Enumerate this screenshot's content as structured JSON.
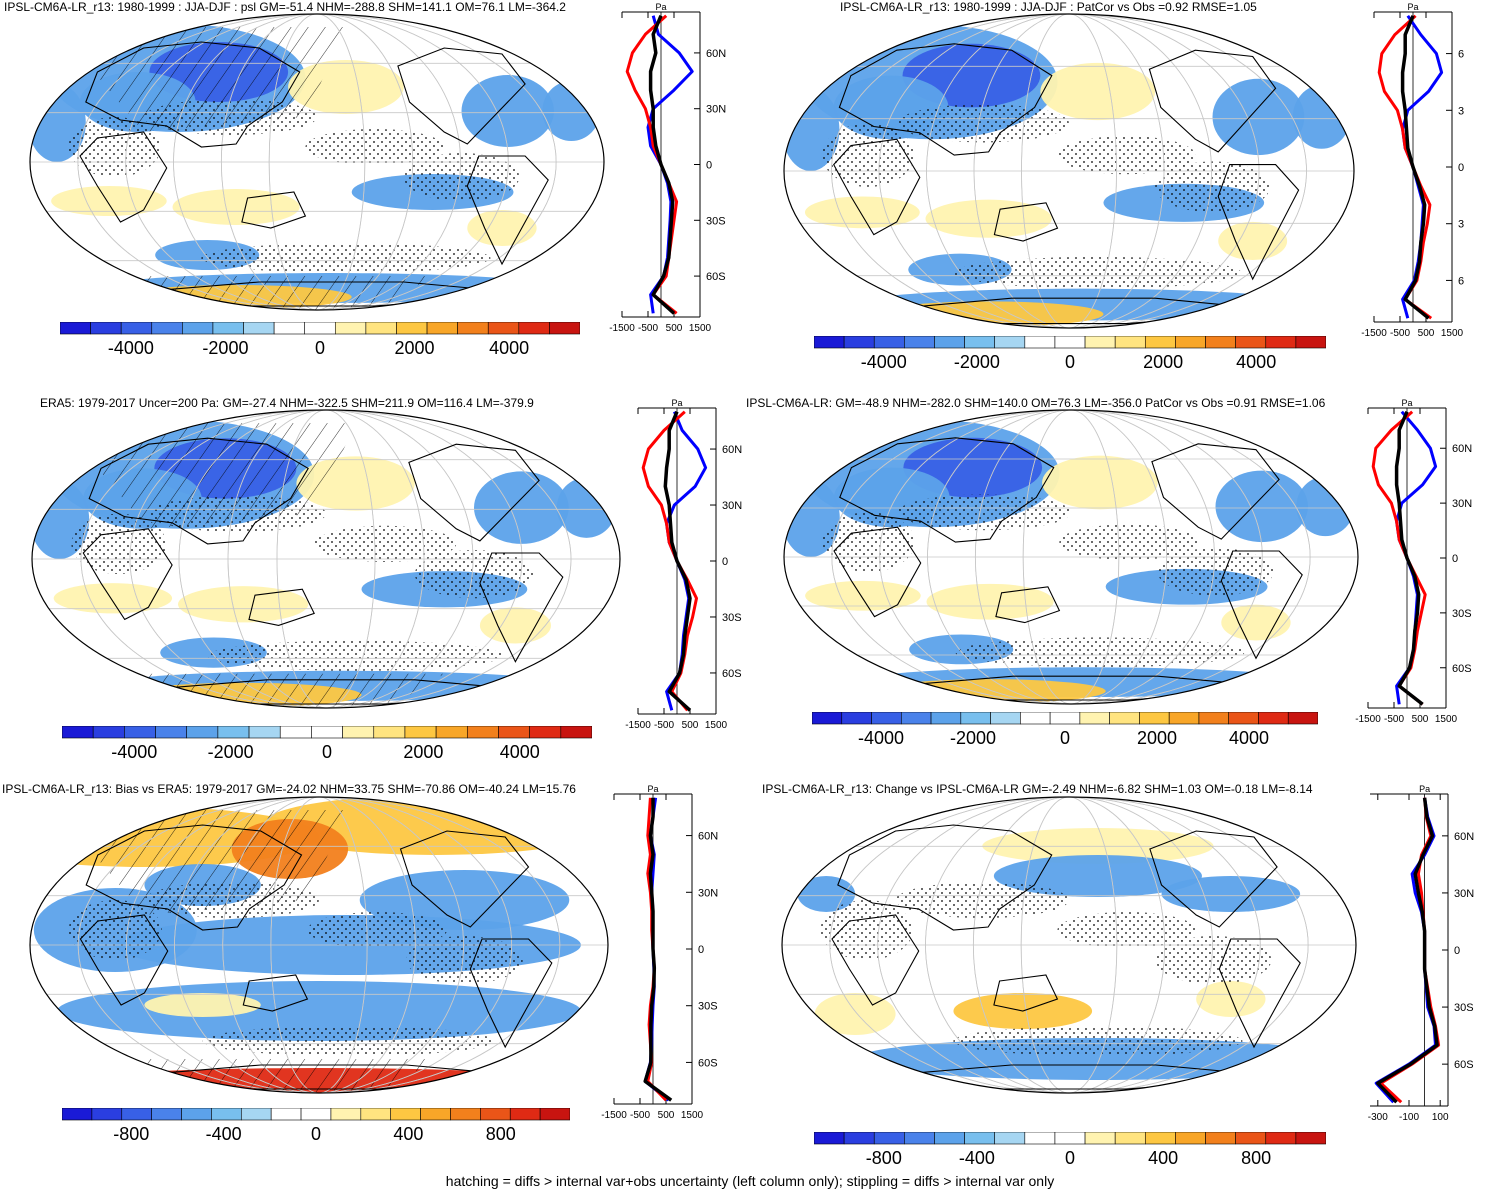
{
  "footnote": "hatching = diffs > internal var+obs uncertainty (left column only); stippling = diffs > internal var only",
  "colors": {
    "scale": [
      "#1a1ad6",
      "#2a3ee0",
      "#3860e6",
      "#4a82ea",
      "#5ca2ea",
      "#78bfee",
      "#a6d6f2",
      "#ffffff",
      "#ffffff",
      "#fff3b0",
      "#ffe480",
      "#fdc742",
      "#f8a628",
      "#f2801c",
      "#ea5518",
      "#df2a14",
      "#c81410"
    ],
    "model_line": "#0000ff",
    "obs_line": "#ff0000",
    "ref_line": "#000000",
    "grid": "#c8c8c8"
  },
  "icons": {
    "land": "continent-outline",
    "hatch": "hatching-lines",
    "stipple": "stippling-dots"
  },
  "chart_data": [
    {
      "type": "heatmap",
      "title": "IPSL-CM6A-LR_r13: 1980-1999 : JJA-DJF : psl GM=-51.4 NHM=-288.8 SHM=141.1 OM=76.1 LM=-364.2",
      "colorbar_ticks": [
        "-4000",
        "-2000",
        "0",
        "2000",
        "4000"
      ],
      "colorbar_range": [
        -5500,
        5500
      ],
      "lat_ticks": [
        "60N",
        "30N",
        "0",
        "30S",
        "60S"
      ],
      "profile_unit": "Pa",
      "profile_ticks": [
        "-1500",
        "-500",
        "500",
        "1500"
      ],
      "profile_range": [
        -1500,
        1500
      ],
      "profile_lat_positions": [
        60,
        30,
        0,
        -30,
        -60
      ],
      "lat": [
        80,
        70,
        60,
        50,
        40,
        30,
        20,
        10,
        0,
        -10,
        -20,
        -30,
        -40,
        -50,
        -60,
        -70,
        -80
      ],
      "zonal_mean": [
        {
          "values": [
            -300,
            -100,
            700,
            1200,
            500,
            -300,
            -500,
            -400,
            0,
            250,
            380,
            350,
            300,
            250,
            100,
            -400,
            -300
          ]
        },
        {
          "values": [
            200,
            -600,
            -1100,
            -1300,
            -1000,
            -600,
            -400,
            -300,
            0,
            300,
            600,
            500,
            400,
            300,
            200,
            -300,
            600
          ]
        },
        {
          "values": [
            0,
            -300,
            -200,
            -400,
            -400,
            -300,
            -300,
            -200,
            0,
            300,
            450,
            400,
            350,
            300,
            100,
            -300,
            500
          ]
        }
      ]
    },
    {
      "type": "heatmap",
      "title": "IPSL-CM6A-LR_r13: 1980-1999 : JJA-DJF : PatCor vs Obs =0.92 RMSE=1.05",
      "colorbar_ticks": [
        "-4000",
        "-2000",
        "0",
        "2000",
        "4000"
      ],
      "colorbar_range": [
        -5500,
        5500
      ],
      "lat_ticks": [
        "6",
        "3",
        "0",
        "3",
        "6"
      ],
      "profile_unit": "Pa",
      "profile_ticks": [
        "-1500",
        "-500",
        "500",
        "1500"
      ],
      "profile_range": [
        -1500,
        1500
      ],
      "profile_lat_positions": [
        60,
        30,
        0,
        -30,
        -60
      ],
      "lat": [
        80,
        70,
        60,
        50,
        40,
        30,
        20,
        10,
        0,
        -10,
        -20,
        -30,
        -40,
        -50,
        -60,
        -70,
        -80
      ],
      "zonal_mean": [
        {
          "values": [
            -200,
            300,
            900,
            1100,
            600,
            -200,
            -400,
            -300,
            0,
            200,
            400,
            350,
            300,
            200,
            50,
            -400,
            -200
          ]
        },
        {
          "values": [
            100,
            -700,
            -1200,
            -1300,
            -1100,
            -600,
            -400,
            -300,
            0,
            300,
            650,
            550,
            400,
            300,
            150,
            -300,
            700
          ]
        },
        {
          "values": [
            0,
            -300,
            -300,
            -400,
            -400,
            -300,
            -250,
            -200,
            0,
            250,
            450,
            400,
            300,
            250,
            100,
            -300,
            600
          ]
        }
      ]
    },
    {
      "type": "heatmap",
      "title": "ERA5: 1979-2017 Uncer=200 Pa: GM=-27.4 NHM=-322.5 SHM=211.9 OM=116.4 LM=-379.9",
      "colorbar_ticks": [
        "-4000",
        "-2000",
        "0",
        "2000",
        "4000"
      ],
      "colorbar_range": [
        -5500,
        5500
      ],
      "lat_ticks": [
        "60N",
        "30N",
        "0",
        "30S",
        "60S"
      ],
      "profile_unit": "Pa",
      "profile_ticks": [
        "-1500",
        "-500",
        "500",
        "1500"
      ],
      "profile_range": [
        -1500,
        1500
      ],
      "profile_lat_positions": [
        60,
        30,
        0,
        -30,
        -60
      ],
      "lat": [
        80,
        70,
        60,
        50,
        40,
        30,
        20,
        10,
        0,
        -10,
        -20,
        -30,
        -40,
        -50,
        -60,
        -70,
        -80
      ],
      "zonal_mean": [
        {
          "values": [
            -100,
            200,
            800,
            1100,
            700,
            -100,
            -400,
            -300,
            0,
            300,
            450,
            350,
            250,
            200,
            100,
            -400,
            -200
          ]
        },
        {
          "values": [
            300,
            -500,
            -1100,
            -1300,
            -1100,
            -600,
            -400,
            -300,
            0,
            400,
            750,
            600,
            400,
            300,
            150,
            -200,
            400
          ]
        },
        {
          "values": [
            0,
            -300,
            -300,
            -400,
            -450,
            -300,
            -250,
            -200,
            0,
            350,
            500,
            400,
            300,
            250,
            100,
            -300,
            500
          ]
        }
      ]
    },
    {
      "type": "heatmap",
      "title": "IPSL-CM6A-LR: GM=-48.9 NHM=-282.0 SHM=140.0 OM=76.3 LM=-356.0 PatCor vs Obs =0.91 RMSE=1.06",
      "colorbar_ticks": [
        "-4000",
        "-2000",
        "0",
        "2000",
        "4000"
      ],
      "colorbar_range": [
        -5500,
        5500
      ],
      "lat_ticks": [
        "60N",
        "30N",
        "0",
        "30S",
        "60S"
      ],
      "profile_unit": "Pa",
      "profile_ticks": [
        "-1500",
        "-500",
        "500",
        "1500"
      ],
      "profile_range": [
        -1500,
        1500
      ],
      "profile_lat_positions": [
        60,
        30,
        0,
        -30,
        -60
      ],
      "lat": [
        80,
        70,
        60,
        50,
        40,
        30,
        20,
        10,
        0,
        -10,
        -20,
        -30,
        -40,
        -50,
        -60,
        -70,
        -80
      ],
      "zonal_mean": [
        {
          "values": [
            -200,
            400,
            900,
            1100,
            600,
            -200,
            -400,
            -300,
            0,
            250,
            400,
            350,
            300,
            250,
            100,
            -400,
            -300
          ]
        },
        {
          "values": [
            200,
            -600,
            -1200,
            -1300,
            -1100,
            -600,
            -400,
            -300,
            0,
            350,
            700,
            550,
            400,
            300,
            150,
            -300,
            600
          ]
        },
        {
          "values": [
            0,
            -300,
            -300,
            -400,
            -400,
            -300,
            -250,
            -200,
            0,
            300,
            450,
            400,
            300,
            250,
            100,
            -300,
            600
          ]
        }
      ]
    },
    {
      "type": "heatmap",
      "title": "IPSL-CM6A-LR_r13: Bias vs ERA5: 1979-2017 GM=-24.02 NHM=33.75 SHM=-70.86 OM=-40.24 LM=15.76",
      "colorbar_ticks": [
        "-800",
        "-400",
        "0",
        "400",
        "800"
      ],
      "colorbar_range": [
        -1100,
        1100
      ],
      "lat_ticks": [
        "60N",
        "30N",
        "0",
        "30S",
        "60S"
      ],
      "profile_unit": "Pa",
      "profile_ticks": [
        "-1500",
        "-500",
        "500",
        "1500"
      ],
      "profile_range": [
        -1500,
        1500
      ],
      "profile_lat_positions": [
        60,
        30,
        0,
        -30,
        -60
      ],
      "lat": [
        80,
        70,
        60,
        50,
        40,
        30,
        20,
        10,
        0,
        -10,
        -20,
        -30,
        -40,
        -50,
        -60,
        -70,
        -80
      ],
      "zonal_mean": [
        {
          "values": [
            100,
            0,
            -100,
            50,
            0,
            -50,
            0,
            -30,
            0,
            30,
            50,
            0,
            -30,
            -50,
            -100,
            -300,
            600
          ]
        },
        {
          "values": [
            -100,
            -150,
            -200,
            -100,
            -200,
            -100,
            -50,
            -50,
            0,
            50,
            0,
            -100,
            -150,
            -100,
            -50,
            -200,
            500
          ]
        },
        {
          "values": [
            0,
            0,
            -100,
            0,
            -100,
            -50,
            0,
            0,
            0,
            50,
            30,
            -50,
            -80,
            -80,
            -80,
            -300,
            700
          ]
        }
      ]
    },
    {
      "type": "heatmap",
      "title": "IPSL-CM6A-LR_r13: Change vs IPSL-CM6A-LR GM=-2.49 NHM=-6.82 SHM=1.03 OM=-0.18 LM=-8.14",
      "colorbar_ticks": [
        "-800",
        "-400",
        "0",
        "400",
        "800"
      ],
      "colorbar_range": [
        -1100,
        1100
      ],
      "lat_ticks": [
        "60N",
        "30N",
        "0",
        "30S",
        "60S"
      ],
      "profile_unit": "Pa",
      "profile_ticks": [
        "-300",
        "-100",
        "100"
      ],
      "profile_range": [
        -350,
        150
      ],
      "profile_lat_positions": [
        60,
        30,
        0,
        -30,
        -60
      ],
      "lat": [
        80,
        70,
        60,
        50,
        40,
        30,
        20,
        10,
        0,
        -10,
        -20,
        -30,
        -40,
        -50,
        -60,
        -70,
        -80
      ],
      "zonal_mean": [
        {
          "values": [
            0,
            20,
            60,
            0,
            -80,
            -60,
            -20,
            0,
            0,
            0,
            10,
            20,
            60,
            70,
            -100,
            -310,
            -200
          ]
        },
        {
          "values": [
            0,
            10,
            40,
            -20,
            -40,
            -20,
            -10,
            0,
            0,
            0,
            20,
            40,
            70,
            90,
            -80,
            -280,
            -150
          ]
        },
        {
          "values": [
            0,
            15,
            50,
            -10,
            -60,
            -40,
            -15,
            0,
            0,
            0,
            15,
            30,
            65,
            80,
            -90,
            -300,
            -180
          ]
        }
      ]
    }
  ]
}
